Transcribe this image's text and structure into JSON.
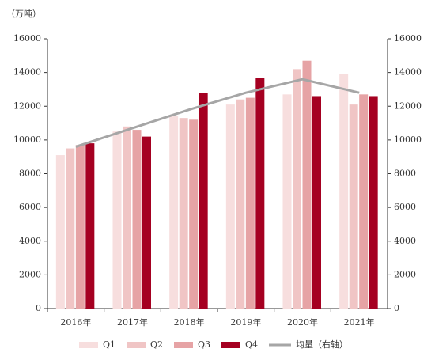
{
  "chart_data": {
    "type": "bar",
    "unit_label": "（万吨）",
    "categories": [
      "2016年",
      "2017年",
      "2018年",
      "2019年",
      "2020年",
      "2021年"
    ],
    "series": [
      {
        "name": "Q1",
        "color": "#f7dede",
        "values": [
          9100,
          10500,
          11400,
          12100,
          12700,
          13900
        ]
      },
      {
        "name": "Q2",
        "color": "#f0c5c5",
        "values": [
          9500,
          10800,
          11300,
          12400,
          14200,
          12100
        ]
      },
      {
        "name": "Q3",
        "color": "#e6a3a5",
        "values": [
          9700,
          10600,
          11200,
          12500,
          14700,
          12700
        ]
      },
      {
        "name": "Q4",
        "color": "#a50021",
        "values": [
          9800,
          10200,
          12800,
          13700,
          12600,
          12600
        ]
      },
      {
        "name": "均量（右轴）",
        "type": "line",
        "axis": "y2",
        "color": "#a6a6a6",
        "values": [
          9600,
          10700,
          11800,
          12800,
          13600,
          12800
        ]
      }
    ],
    "ylim": [
      0,
      16000
    ],
    "yticks": [
      0,
      2000,
      4000,
      6000,
      8000,
      10000,
      12000,
      14000,
      16000
    ],
    "y2lim": [
      0,
      16000
    ],
    "y2ticks": [
      0,
      2000,
      4000,
      6000,
      8000,
      10000,
      12000,
      14000,
      16000
    ],
    "grid": false
  }
}
